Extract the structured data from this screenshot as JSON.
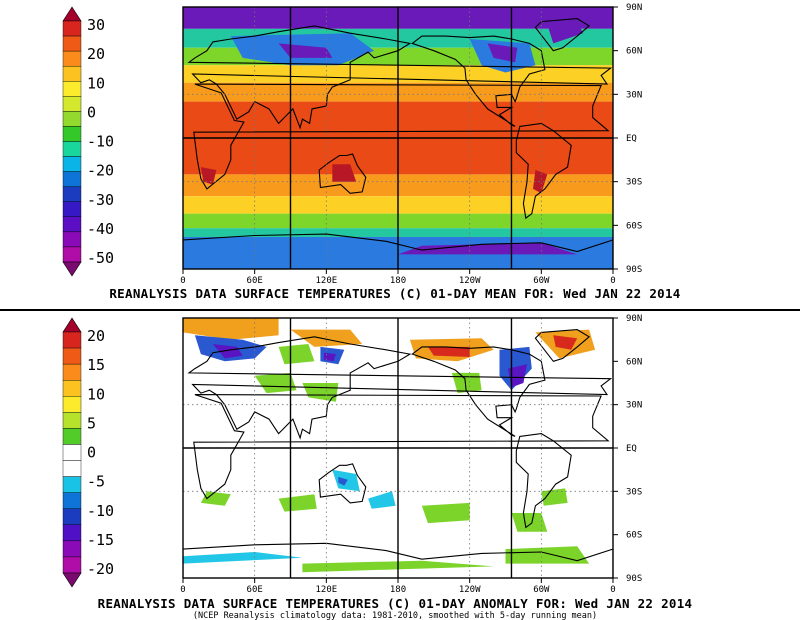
{
  "top_panel": {
    "title": "REANALYSIS DATA SURFACE TEMPERATURES (C) 01-DAY MEAN FOR: Wed JAN 22 2014",
    "colorbar": {
      "labels": [
        "30",
        "20",
        "10",
        "0",
        "-10",
        "-20",
        "-30",
        "-40",
        "-50"
      ],
      "colors": [
        "#a4002a",
        "#d8261e",
        "#ef5a16",
        "#fb8c1c",
        "#fcc320",
        "#fbeb2c",
        "#d4e92e",
        "#94da2e",
        "#34c828",
        "#19d69d",
        "#0ab4e6",
        "#0f74d8",
        "#1c3cc0",
        "#3618c4",
        "#5c0ec4",
        "#8a0ab8",
        "#b00ca8",
        "#7a0a6e"
      ]
    }
  },
  "bottom_panel": {
    "title": "REANALYSIS DATA SURFACE TEMPERATURES (C) 01-DAY ANOMALY FOR: Wed JAN 22 2014",
    "subtitle": "(NCEP Reanalysis climatology data: 1981-2010, smoothed with 5-day running mean)",
    "colorbar": {
      "labels": [
        "20",
        "15",
        "10",
        "5",
        "0",
        "-5",
        "-10",
        "-15",
        "-20"
      ],
      "colors": [
        "#a4002a",
        "#d8261e",
        "#ef5a16",
        "#fb8c1c",
        "#fcc320",
        "#fbeb2c",
        "#b6e22c",
        "#52cc28",
        "#ffffff",
        "#ffffff",
        "#19c3e6",
        "#0f74d8",
        "#1c3cc0",
        "#5010c6",
        "#8a0ab8",
        "#b00ca8",
        "#7a0a6e"
      ]
    }
  },
  "lat_labels": [
    "90N",
    "60N",
    "30N",
    "EQ",
    "30S",
    "60S",
    "90S"
  ],
  "lon_labels": [
    "0",
    "60E",
    "120E",
    "180",
    "120W",
    "60W",
    "0"
  ],
  "map_colors": {
    "polar_cold": "#6a1ab8",
    "cold": "#2a7ae0",
    "cool": "#24c8a0",
    "mild": "#7ed62a",
    "warm": "#fcd024",
    "hot": "#f89a1c",
    "tropical": "#ea4a16",
    "extreme": "#b81826",
    "anomaly_warm": "#f0a01c",
    "anomaly_hot": "#d82a1c",
    "anomaly_green": "#7cd42a",
    "anomaly_cyan": "#22c6e6",
    "anomaly_blue": "#2a58d0",
    "anomaly_purple": "#5a14c2"
  }
}
